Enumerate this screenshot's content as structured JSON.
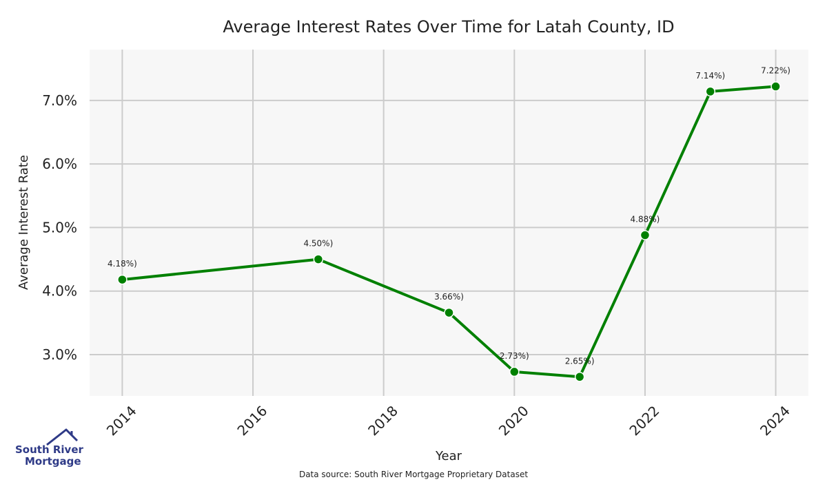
{
  "chart_data": {
    "type": "line",
    "title": "Average Interest Rates Over Time for Latah County, ID",
    "xlabel": "Year",
    "ylabel": "Average Interest Rate",
    "xlim": [
      2013.5,
      2024.5
    ],
    "ylim": [
      2.35,
      7.8
    ],
    "x_ticks": [
      2014,
      2016,
      2018,
      2020,
      2022,
      2024
    ],
    "x_tick_labels": [
      "2014",
      "2016",
      "2018",
      "2020",
      "2022",
      "2024"
    ],
    "y_ticks": [
      3.0,
      4.0,
      5.0,
      6.0,
      7.0
    ],
    "y_tick_labels": [
      "3.0%",
      "4.0%",
      "5.0%",
      "6.0%",
      "7.0%"
    ],
    "grid": true,
    "series": [
      {
        "color": "#008000",
        "points": [
          {
            "x": 2014,
            "y": 4.18,
            "label": "4.18%)"
          },
          {
            "x": 2017,
            "y": 4.5,
            "label": "4.50%)"
          },
          {
            "x": 2019,
            "y": 3.66,
            "label": "3.66%)"
          },
          {
            "x": 2020,
            "y": 2.73,
            "label": "2.73%)"
          },
          {
            "x": 2021,
            "y": 2.65,
            "label": "2.65%)"
          },
          {
            "x": 2022,
            "y": 4.88,
            "label": "4.88%)"
          },
          {
            "x": 2023,
            "y": 7.14,
            "label": "7.14%)"
          },
          {
            "x": 2024,
            "y": 7.22,
            "label": "7.22%)"
          }
        ]
      }
    ],
    "source_note": "Data source: South River Mortgage Proprietary Dataset"
  },
  "logo": {
    "line1": "South River",
    "line2": "Mortgage",
    "color": "#2e3a87",
    "icon": "house-roof-icon"
  }
}
